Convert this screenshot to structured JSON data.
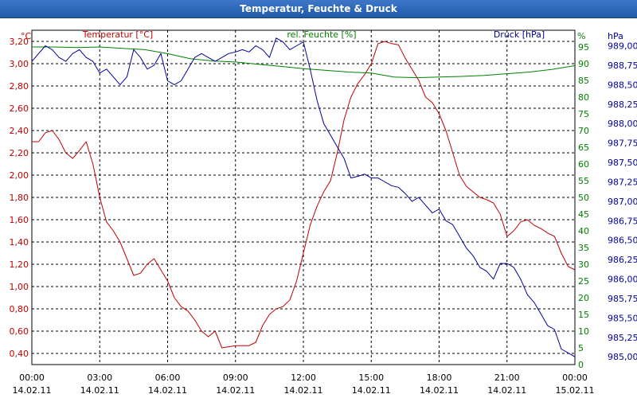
{
  "window": {
    "title": "Temperatur, Feuchte & Druck"
  },
  "colors": {
    "temperature": "#c00000",
    "humidity": "#008000",
    "pressure": "#0000a0",
    "grid": "#000000",
    "axis_text": "#000000"
  },
  "chart_data": {
    "type": "line",
    "title": "Temperatur, Feuchte & Druck",
    "x_ticks": [
      {
        "time": "00:00",
        "date": "14.02.11"
      },
      {
        "time": "03:00",
        "date": "14.02.11"
      },
      {
        "time": "06:00",
        "date": "14.02.11"
      },
      {
        "time": "09:00",
        "date": "14.02.11"
      },
      {
        "time": "12:00",
        "date": "14.02.11"
      },
      {
        "time": "15:00",
        "date": "14.02.11"
      },
      {
        "time": "18:00",
        "date": "14.02.11"
      },
      {
        "time": "21:00",
        "date": "14.02.11"
      },
      {
        "time": "00:00",
        "date": "15.02.11"
      }
    ],
    "xlim_hours": [
      0,
      24
    ],
    "axes": {
      "temperature": {
        "label": "Temperatur [°C]",
        "unit": "°C",
        "ylim": [
          0.3,
          3.3
        ],
        "ticks": [
          3.2,
          3.0,
          2.8,
          2.6,
          2.4,
          2.2,
          2.0,
          1.8,
          1.6,
          1.4,
          1.2,
          1.0,
          0.8,
          0.6,
          0.4
        ],
        "tick_labels": [
          "3,20",
          "3,00",
          "2,80",
          "2,60",
          "2,40",
          "2,20",
          "2,00",
          "1,80",
          "1,60",
          "1,40",
          "1,20",
          "1,00",
          "0,80",
          "0,60",
          "0,40"
        ]
      },
      "humidity": {
        "label": "rel. Feuchte [%]",
        "unit": "%",
        "ylim": [
          0,
          100
        ],
        "ticks": [
          95,
          90,
          85,
          80,
          75,
          70,
          65,
          60,
          55,
          50,
          45,
          40,
          35,
          30,
          25,
          20,
          15,
          10,
          5,
          0
        ],
        "tick_labels": [
          "95",
          "90",
          "85",
          "80",
          "75",
          "70",
          "65",
          "60",
          "55",
          "50",
          "45",
          "40",
          "35",
          "30",
          "25",
          "20",
          "15",
          "10",
          "5",
          "0"
        ]
      },
      "pressure": {
        "label": "Druck [hPa]",
        "unit": "hPa",
        "ylim": [
          984.9,
          989.2
        ],
        "ticks": [
          989.0,
          988.75,
          988.5,
          988.25,
          988.0,
          987.75,
          987.5,
          987.25,
          987.0,
          986.75,
          986.5,
          986.25,
          986.0,
          985.75,
          985.5,
          985.25,
          985.0
        ],
        "tick_labels": [
          "989,00",
          "988,75",
          "988,50",
          "988,25",
          "988,00",
          "987,75",
          "987,50",
          "987,25",
          "987,00",
          "986,75",
          "986,50",
          "986,25",
          "986,00",
          "985,75",
          "985,50",
          "985,25",
          "985,00"
        ]
      }
    },
    "series": [
      {
        "name": "Temperatur",
        "axis": "temperature",
        "color": "#c00000",
        "x": [
          0,
          0.3,
          0.6,
          0.9,
          1.2,
          1.5,
          1.8,
          2.1,
          2.4,
          2.7,
          3.0,
          3.3,
          3.6,
          3.9,
          4.2,
          4.5,
          4.8,
          5.1,
          5.4,
          5.7,
          6.0,
          6.3,
          6.6,
          6.9,
          7.2,
          7.5,
          7.8,
          8.1,
          8.4,
          8.7,
          9.0,
          9.3,
          9.6,
          9.9,
          10.2,
          10.5,
          10.8,
          11.1,
          11.4,
          11.7,
          12.0,
          12.3,
          12.6,
          12.9,
          13.2,
          13.5,
          13.8,
          14.1,
          14.4,
          14.7,
          15.0,
          15.3,
          15.6,
          15.9,
          16.2,
          16.5,
          16.8,
          17.1,
          17.4,
          17.7,
          18.0,
          18.3,
          18.6,
          18.9,
          19.2,
          19.5,
          19.8,
          20.1,
          20.4,
          20.7,
          21.0,
          21.3,
          21.6,
          21.9,
          22.2,
          22.5,
          22.8,
          23.1,
          23.4,
          23.7,
          24.0
        ],
        "values": [
          2.3,
          2.3,
          2.38,
          2.4,
          2.32,
          2.2,
          2.15,
          2.22,
          2.3,
          2.1,
          1.8,
          1.58,
          1.5,
          1.4,
          1.25,
          1.1,
          1.12,
          1.2,
          1.25,
          1.15,
          1.05,
          0.9,
          0.82,
          0.78,
          0.7,
          0.6,
          0.55,
          0.6,
          0.45,
          0.46,
          0.47,
          0.47,
          0.47,
          0.5,
          0.65,
          0.75,
          0.8,
          0.82,
          0.88,
          1.05,
          1.3,
          1.55,
          1.72,
          1.85,
          1.95,
          2.2,
          2.5,
          2.7,
          2.82,
          2.9,
          3.0,
          3.18,
          3.2,
          3.18,
          3.17,
          3.05,
          2.95,
          2.85,
          2.7,
          2.65,
          2.55,
          2.4,
          2.2,
          2.0,
          1.9,
          1.85,
          1.8,
          1.78,
          1.75,
          1.65,
          1.45,
          1.5,
          1.58,
          1.6,
          1.55,
          1.52,
          1.48,
          1.45,
          1.3,
          1.18,
          1.15
        ]
      },
      {
        "name": "rel. Feuchte",
        "axis": "humidity",
        "color": "#008000",
        "x": [
          0,
          1,
          2,
          3,
          4,
          5,
          6,
          7,
          8,
          9,
          10,
          11,
          12,
          13,
          14,
          15,
          16,
          17,
          18,
          19,
          20,
          21,
          22,
          23,
          24
        ],
        "values": [
          95,
          95,
          94.8,
          95,
          94.6,
          94.2,
          93,
          91.5,
          90.8,
          90.5,
          89.8,
          89.2,
          88.5,
          88,
          87.5,
          87.2,
          86,
          85.8,
          86,
          86.2,
          86.5,
          87,
          87.5,
          88.3,
          89.4
        ]
      },
      {
        "name": "Druck",
        "axis": "pressure",
        "color": "#0000a0",
        "x": [
          0,
          0.3,
          0.6,
          0.9,
          1.2,
          1.5,
          1.8,
          2.1,
          2.4,
          2.7,
          3.0,
          3.3,
          3.6,
          3.9,
          4.2,
          4.5,
          4.8,
          5.1,
          5.4,
          5.7,
          6.0,
          6.3,
          6.6,
          6.9,
          7.2,
          7.5,
          7.8,
          8.1,
          8.4,
          8.7,
          9.0,
          9.3,
          9.6,
          9.9,
          10.2,
          10.5,
          10.8,
          11.1,
          11.4,
          11.7,
          12.0,
          12.3,
          12.6,
          12.9,
          13.2,
          13.5,
          13.8,
          14.1,
          14.4,
          14.7,
          15.0,
          15.3,
          15.6,
          15.9,
          16.2,
          16.5,
          16.8,
          17.1,
          17.4,
          17.7,
          18.0,
          18.3,
          18.6,
          18.9,
          19.2,
          19.5,
          19.8,
          20.1,
          20.4,
          20.7,
          21.0,
          21.3,
          21.6,
          21.9,
          22.2,
          22.5,
          22.8,
          23.1,
          23.4,
          23.7,
          24.0
        ],
        "values": [
          988.8,
          988.9,
          989.0,
          988.95,
          988.85,
          988.8,
          988.9,
          988.95,
          988.85,
          988.8,
          988.65,
          988.7,
          988.6,
          988.5,
          988.6,
          988.95,
          988.85,
          988.7,
          988.75,
          988.9,
          988.55,
          988.5,
          988.55,
          988.7,
          988.85,
          988.9,
          988.85,
          988.8,
          988.85,
          988.9,
          988.92,
          988.95,
          988.92,
          989.0,
          988.95,
          988.85,
          989.1,
          989.05,
          988.95,
          989.0,
          989.05,
          988.7,
          988.3,
          988.0,
          987.85,
          987.7,
          987.55,
          987.3,
          987.32,
          987.35,
          987.3,
          987.3,
          987.25,
          987.2,
          987.18,
          987.1,
          987.0,
          987.05,
          986.95,
          986.85,
          986.9,
          986.75,
          986.7,
          986.55,
          986.4,
          986.3,
          986.15,
          986.1,
          986.0,
          986.2,
          986.2,
          986.15,
          986.0,
          985.8,
          985.7,
          985.55,
          985.4,
          985.35,
          985.1,
          985.05,
          985.0
        ]
      }
    ]
  }
}
